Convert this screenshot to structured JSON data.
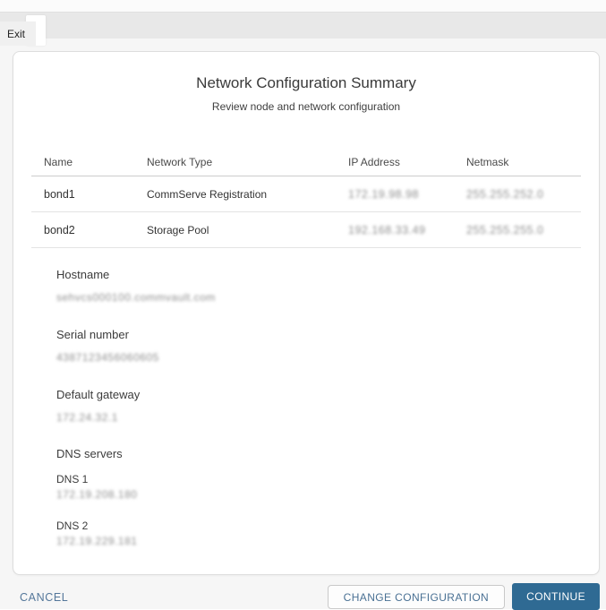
{
  "topbar": {
    "exit_label": "Exit"
  },
  "dialog": {
    "title": "Network Configuration Summary",
    "subtitle": "Review node and network configuration",
    "table": {
      "headers": {
        "name": "Name",
        "network_type": "Network Type",
        "ip": "IP Address",
        "netmask": "Netmask"
      },
      "rows": [
        {
          "name": "bond1",
          "network_type": "CommServe Registration",
          "ip": "172.19.98.98",
          "netmask": "255.255.252.0"
        },
        {
          "name": "bond2",
          "network_type": "Storage Pool",
          "ip": "192.168.33.49",
          "netmask": "255.255.255.0"
        }
      ]
    },
    "fields": {
      "hostname_label": "Hostname",
      "hostname_value": "sehvcs000100.commvault.com",
      "serial_label": "Serial number",
      "serial_value": "4387123456060605",
      "gateway_label": "Default gateway",
      "gateway_value": "172.24.32.1",
      "dns_label": "DNS servers",
      "dns1_label": "DNS 1",
      "dns1_value": "172.19.208.180",
      "dns2_label": "DNS 2",
      "dns2_value": "172.19.229.181"
    }
  },
  "footer": {
    "cancel_label": "CANCEL",
    "change_label": "CHANGE CONFIGURATION",
    "continue_label": "CONTINUE"
  },
  "colors": {
    "primary_button": "#2f6a93",
    "link_blue": "#54779a"
  }
}
